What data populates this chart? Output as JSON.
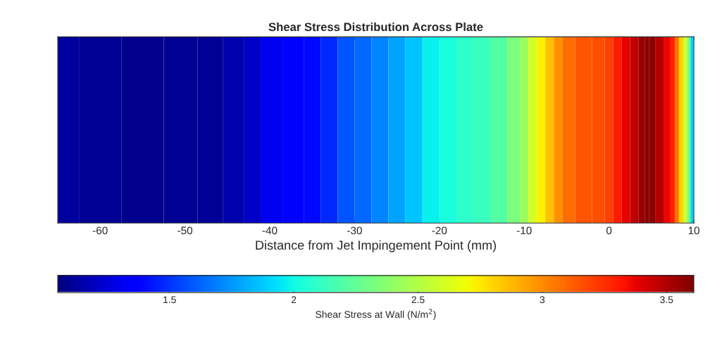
{
  "chart_data": {
    "type": "heatmap",
    "title": "Shear Stress Distribution Across Plate",
    "xlabel": "Distance from Jet Impingement Point (mm)",
    "clabel": "Shear Stress at Wall (N/m$^{2}$)",
    "x": [
      -65,
      -60,
      -55,
      -50,
      -47,
      -44,
      -42,
      -40,
      -37,
      -35,
      -33,
      -31,
      -29,
      -27,
      -25,
      -23,
      -21,
      -19,
      -17,
      -15,
      -13,
      -11,
      -10,
      -9,
      -8,
      -7,
      -6,
      -5,
      -3,
      -1,
      0,
      1,
      2,
      3,
      4,
      4.5,
      5,
      6,
      7,
      7.5,
      8,
      8.5,
      9,
      9.4,
      9.8
    ],
    "y_categories": [
      null
    ],
    "cells": [
      [
        1.12,
        1.09,
        1.08,
        1.09,
        1.1,
        1.16,
        1.22,
        1.3,
        1.36,
        1.4,
        1.47,
        1.58,
        1.64,
        1.7,
        1.78,
        1.86,
        1.97,
        2.03,
        2.08,
        2.12,
        2.2,
        2.32,
        2.42,
        2.6,
        2.72,
        2.85,
        2.98,
        3.08,
        3.14,
        3.16,
        3.2,
        3.3,
        3.38,
        3.46,
        3.55,
        3.58,
        3.57,
        3.48,
        3.36,
        3.28,
        3.05,
        2.8,
        2.6,
        2.3,
        1.9
      ]
    ],
    "xlim": [
      -65,
      10
    ],
    "xticks": [
      -60,
      -50,
      -40,
      -30,
      -20,
      -10,
      0,
      10
    ],
    "clim": [
      1.05,
      3.61
    ],
    "cticks": [
      1.5,
      2,
      2.5,
      3,
      3.5
    ],
    "tick_labels": "x"
  }
}
